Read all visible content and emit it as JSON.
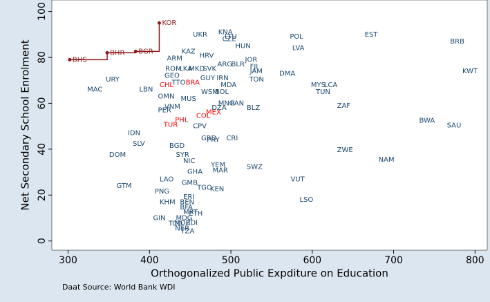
{
  "chart_data": {
    "type": "scatter",
    "x_label": "Orthogonalized Public Expditure on Education",
    "y_label": "Net Secondary School Enrolment",
    "source": "Daat Source: World Bank WDI",
    "xlim": [
      280,
      815
    ],
    "ylim": [
      -4,
      105
    ],
    "xticks": [
      300,
      400,
      500,
      600,
      700,
      800
    ],
    "yticks": [
      0,
      20,
      40,
      60,
      80,
      100
    ],
    "series": [
      {
        "color": "#8b1a1a",
        "line": "step",
        "labels": [
          "BHS",
          "BHR",
          "BGR",
          "KOR"
        ],
        "x": [
          302,
          348,
          383,
          412
        ],
        "values": [
          79,
          82,
          82.6,
          95
        ]
      },
      {
        "color": "#ff0000",
        "labels": [
          "CHL",
          "BRA",
          "MEX",
          "COL",
          "PHL",
          "TUR"
        ],
        "x": [
          409,
          441,
          466,
          454,
          428,
          414
        ],
        "values": [
          68,
          69,
          56,
          54.6,
          52.7,
          50.6
        ]
      },
      {
        "color": "#1a476f",
        "labels": [
          "UKR",
          "KNA",
          "CZE",
          "LTU",
          "HUN",
          "POL",
          "EST",
          "BRB",
          "LVA",
          "KAZ",
          "ARM",
          "HRV",
          "JOR",
          "ARG",
          "BLR",
          "FJI",
          "JAM",
          "DMA",
          "KWT",
          "ROM",
          "LKA",
          "MKD",
          "SVK",
          "GEO",
          "GUY",
          "IRN",
          "TON",
          "URY",
          "MYS",
          "LCA",
          "TTO",
          "MDA",
          "MAC",
          "LBN",
          "TUN",
          "WSM",
          "BOL",
          "OMN",
          "MUS",
          "MNG",
          "PAN",
          "ZAF",
          "BLZ",
          "VNM",
          "DZA",
          "PER",
          "BWA",
          "SAU",
          "CPV",
          "IDN",
          "GRD",
          "PRY",
          "CRI",
          "SLV",
          "BGD",
          "ZWE",
          "DOM",
          "SYR",
          "NAM",
          "NIC",
          "YEM",
          "SWZ",
          "MAR",
          "GHA",
          "VUT",
          "LAO",
          "GMB",
          "GTM",
          "TGO",
          "KEN",
          "PNG",
          "ERI",
          "LSO",
          "KHM",
          "BEN",
          "BFA",
          "MRT",
          "ETH",
          "MDG",
          "GIN",
          "MOZ",
          "BDI",
          "TCD",
          "NER",
          "TZA"
        ],
        "x": [
          450,
          481,
          486,
          489,
          502,
          569,
          661,
          766,
          572,
          436,
          418,
          458,
          514,
          480,
          497,
          520,
          520,
          556,
          781,
          416,
          433,
          445,
          462,
          415,
          459,
          479,
          519,
          343,
          595,
          611,
          424,
          484,
          320,
          384,
          601,
          460,
          477,
          407,
          435,
          481,
          496,
          627,
          516,
          415,
          473,
          407,
          728,
          762,
          450,
          370,
          460,
          467,
          491,
          376,
          421,
          627,
          347,
          429,
          678,
          438,
          472,
          516,
          474,
          443,
          570,
          409,
          436,
          356,
          455,
          471,
          403,
          438,
          581,
          409,
          434,
          434,
          438,
          445,
          429,
          401,
          427,
          441,
          420,
          428,
          435
        ],
        "values": [
          90,
          91,
          88,
          89,
          85,
          89,
          90,
          87,
          84,
          82.6,
          79.6,
          80.8,
          79,
          77,
          77,
          76,
          74,
          73,
          74,
          75,
          75,
          75,
          75,
          72,
          71,
          71,
          70.4,
          70.4,
          68,
          68,
          69,
          68,
          66,
          66,
          65,
          65,
          65,
          63,
          62,
          60,
          60,
          59,
          58,
          58.5,
          58,
          57,
          52.4,
          50.3,
          50,
          47,
          44.8,
          44,
          44.8,
          42.4,
          41.5,
          39.6,
          37.5,
          37.5,
          35.4,
          34.8,
          33.2,
          32.3,
          30.8,
          30.2,
          26.8,
          26.8,
          25.3,
          24,
          23.2,
          22.6,
          21.6,
          19.2,
          18,
          17,
          17,
          14.6,
          12.5,
          11.9,
          10,
          10,
          7.9,
          7.9,
          7.6,
          5.5,
          4.3
        ]
      }
    ]
  }
}
